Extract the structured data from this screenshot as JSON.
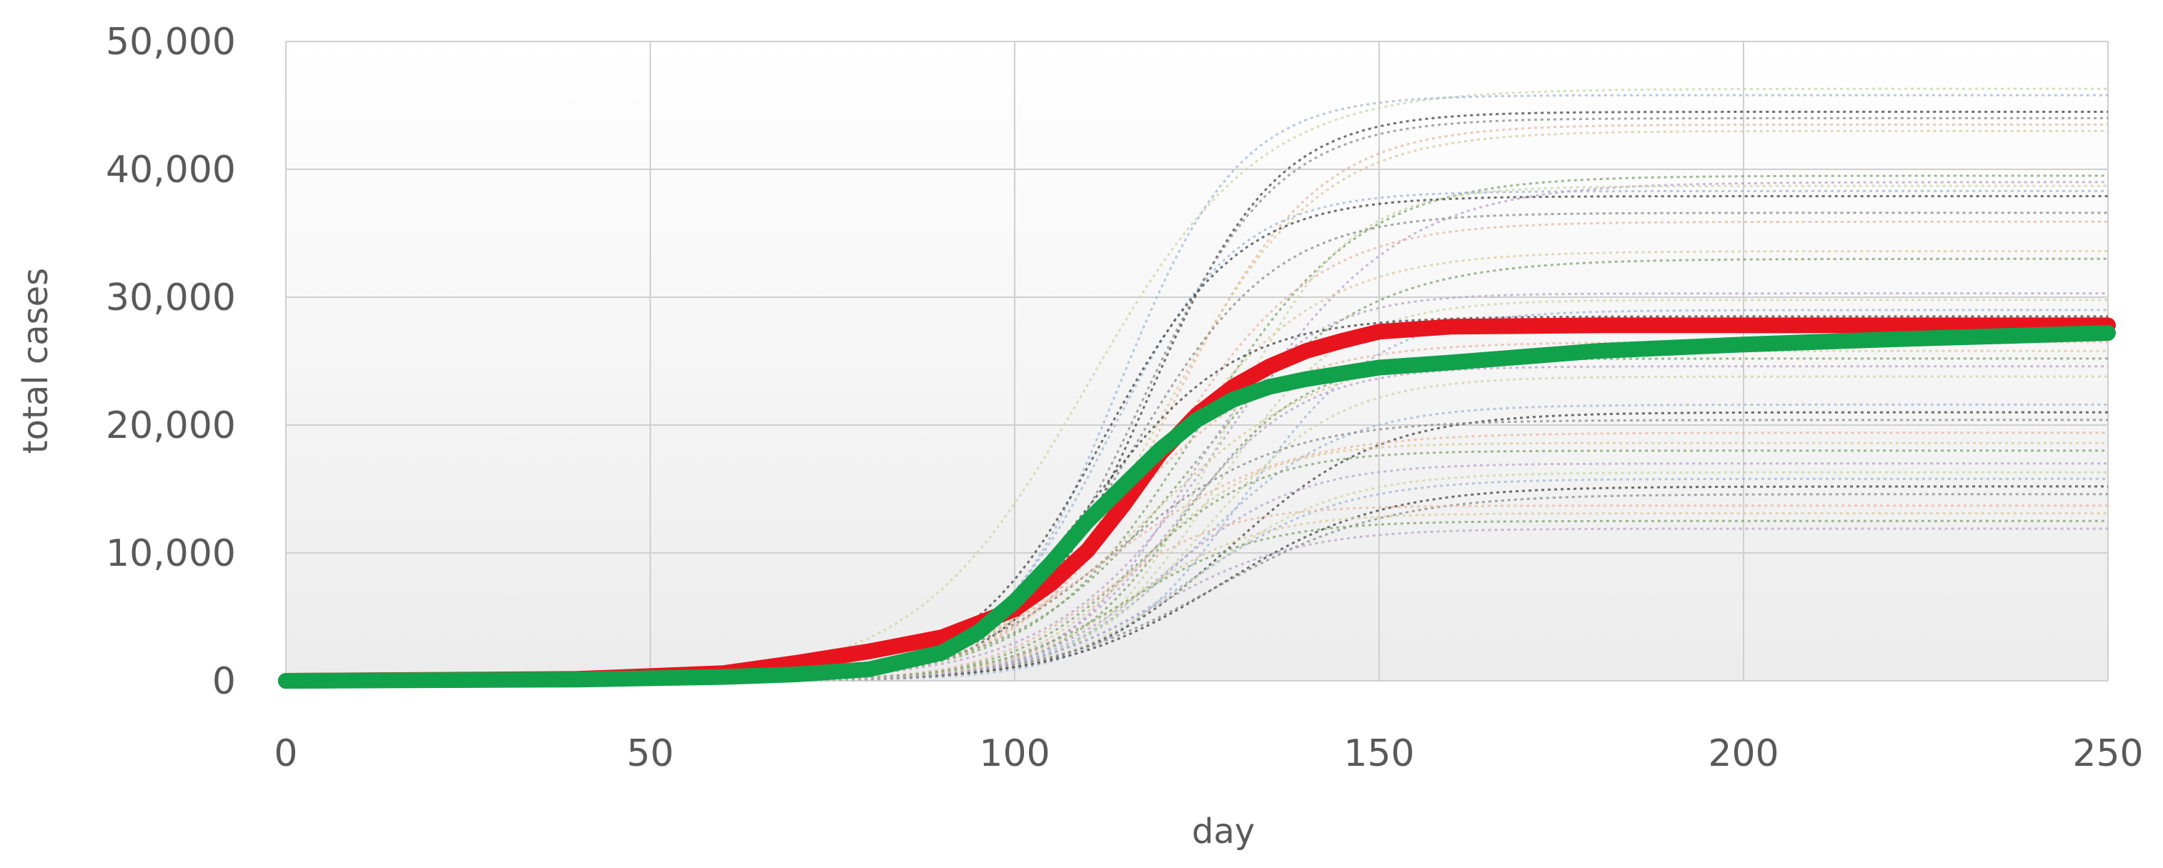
{
  "chart_data": {
    "type": "line",
    "title": "",
    "xlabel": "day",
    "ylabel": "total cases",
    "xlim": [
      0,
      250
    ],
    "ylim": [
      0,
      50000
    ],
    "x_ticks": [
      "0",
      "50",
      "100",
      "150",
      "200",
      "250"
    ],
    "y_ticks": [
      "0",
      "10,000",
      "20,000",
      "30,000",
      "40,000",
      "50,000"
    ],
    "grid": true,
    "legend": "none",
    "background_gradient": [
      "#ffffff",
      "#ececec"
    ],
    "series": [
      {
        "style": "thick-solid",
        "color": "#e8141d",
        "x": [
          0,
          40,
          60,
          70,
          80,
          90,
          100,
          105,
          110,
          115,
          120,
          125,
          130,
          135,
          140,
          145,
          150,
          160,
          180,
          200,
          220,
          250
        ],
        "values": [
          0,
          150,
          600,
          1400,
          2300,
          3400,
          5600,
          7600,
          10200,
          13800,
          17800,
          20800,
          23000,
          24600,
          25800,
          26600,
          27300,
          27700,
          27800,
          27800,
          27800,
          27800
        ]
      },
      {
        "style": "thick-solid",
        "color": "#12a14b",
        "x": [
          0,
          40,
          60,
          70,
          80,
          90,
          95,
          100,
          105,
          110,
          115,
          120,
          125,
          130,
          135,
          140,
          150,
          160,
          180,
          200,
          220,
          250
        ],
        "values": [
          0,
          100,
          300,
          500,
          900,
          2200,
          3800,
          6200,
          9200,
          12500,
          15300,
          18100,
          20400,
          22000,
          23000,
          23600,
          24500,
          24900,
          25800,
          26300,
          26700,
          27200
        ]
      }
    ],
    "scenario_plateaus": [
      46300,
      45800,
      44500,
      44000,
      43500,
      43000,
      39500,
      39000,
      38700,
      38300,
      37900,
      36600,
      35900,
      33600,
      33000,
      30300,
      29800,
      29000,
      28500,
      28000,
      26500,
      25800,
      25200,
      24600,
      23800,
      21600,
      21000,
      20400,
      19400,
      18600,
      18000,
      17000,
      16300,
      15800,
      15200,
      14600,
      13700,
      13100,
      12500,
      11900
    ],
    "scenario_colors": [
      "#c9d6a6",
      "#9fb5d6",
      "#404040",
      "#8a8a8a",
      "#e8b6a0",
      "#d9c99a",
      "#7ea36b",
      "#b9a1c9"
    ]
  }
}
